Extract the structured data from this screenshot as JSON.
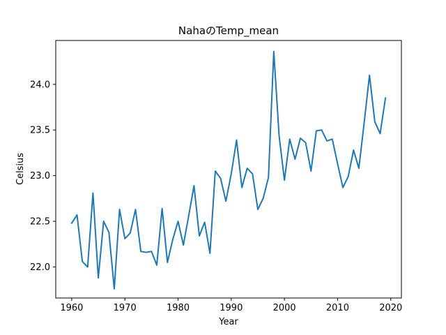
{
  "chart_data": {
    "type": "line",
    "title": "NahaのTemp_mean",
    "xlabel": "Year",
    "ylabel": "Celsius",
    "xlim": [
      1957,
      2022
    ],
    "ylim": [
      21.66,
      24.48
    ],
    "x_ticks": [
      1960,
      1970,
      1980,
      1990,
      2000,
      2010,
      2020
    ],
    "y_ticks": [
      22.0,
      22.5,
      23.0,
      23.5,
      24.0
    ],
    "y_tick_labels": [
      "22.0",
      "22.5",
      "23.0",
      "23.5",
      "24.0"
    ],
    "grid": false,
    "series": [
      {
        "color": "#1f77b4",
        "x": [
          1960,
          1961,
          1962,
          1963,
          1964,
          1965,
          1966,
          1967,
          1968,
          1969,
          1970,
          1971,
          1972,
          1973,
          1974,
          1975,
          1976,
          1977,
          1978,
          1979,
          1980,
          1981,
          1982,
          1983,
          1984,
          1985,
          1986,
          1987,
          1988,
          1989,
          1990,
          1991,
          1992,
          1993,
          1994,
          1995,
          1996,
          1997,
          1998,
          1999,
          2000,
          2001,
          2002,
          2003,
          2004,
          2005,
          2006,
          2007,
          2008,
          2009,
          2010,
          2011,
          2012,
          2013,
          2014,
          2015,
          2016,
          2017,
          2018,
          2019
        ],
        "values": [
          22.48,
          22.57,
          22.06,
          22.0,
          22.81,
          21.88,
          22.5,
          22.38,
          21.76,
          22.63,
          22.31,
          22.37,
          22.63,
          22.17,
          22.16,
          22.17,
          22.02,
          22.64,
          22.05,
          22.3,
          22.5,
          22.24,
          22.56,
          22.89,
          22.34,
          22.49,
          22.15,
          23.05,
          22.97,
          22.72,
          23.02,
          23.39,
          22.87,
          23.08,
          23.02,
          22.63,
          22.75,
          22.98,
          24.36,
          23.44,
          22.95,
          23.4,
          23.18,
          23.41,
          23.36,
          23.05,
          23.49,
          23.5,
          23.38,
          23.4,
          23.13,
          22.87,
          22.99,
          23.28,
          23.08,
          23.58,
          24.1,
          23.59,
          23.46,
          23.85
        ]
      }
    ]
  }
}
